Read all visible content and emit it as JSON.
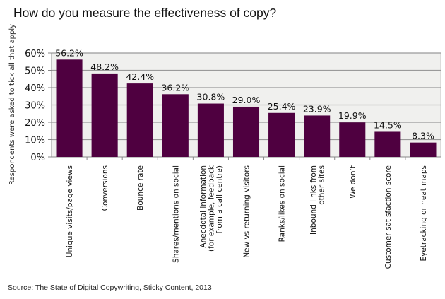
{
  "chart_data": {
    "type": "bar",
    "title": "How do you measure the effectiveness of copy?",
    "ylabel": "Respondents were asked to tick all that apply",
    "xlabel": "",
    "source": "Source: The State of Digital Copywriting, Sticky Content, 2013",
    "ylim": [
      0,
      60
    ],
    "yticks": [
      0,
      10,
      20,
      30,
      40,
      50,
      60
    ],
    "ytick_labels": [
      "0%",
      "10%",
      "20%",
      "30%",
      "40%",
      "50%",
      "60%"
    ],
    "grid": true,
    "bar_color": "#4f0040",
    "plot_background": "#f0f0ee",
    "categories": [
      [
        "Unique visits/page views"
      ],
      [
        "Conversions"
      ],
      [
        "Bounce rate"
      ],
      [
        "Shares/mentions on social"
      ],
      [
        "Anecdotal information",
        "(for example, feedback",
        "from a call centre)"
      ],
      [
        "New vs returning visitors"
      ],
      [
        "Ranks/likes on social"
      ],
      [
        "Inbound links from",
        "other sites"
      ],
      [
        "We don’t"
      ],
      [
        "Customer satisfaction score"
      ],
      [
        "Eyetracking or heat maps"
      ]
    ],
    "values": [
      56.2,
      48.2,
      42.4,
      36.2,
      30.8,
      29.0,
      25.4,
      23.9,
      19.9,
      14.5,
      8.3
    ],
    "data_labels": [
      "56.2%",
      "48.2%",
      "42.4%",
      "36.2%",
      "30.8%",
      "29.0%",
      "25.4%",
      "23.9%",
      "19.9%",
      "14.5%",
      "8.3%"
    ]
  }
}
